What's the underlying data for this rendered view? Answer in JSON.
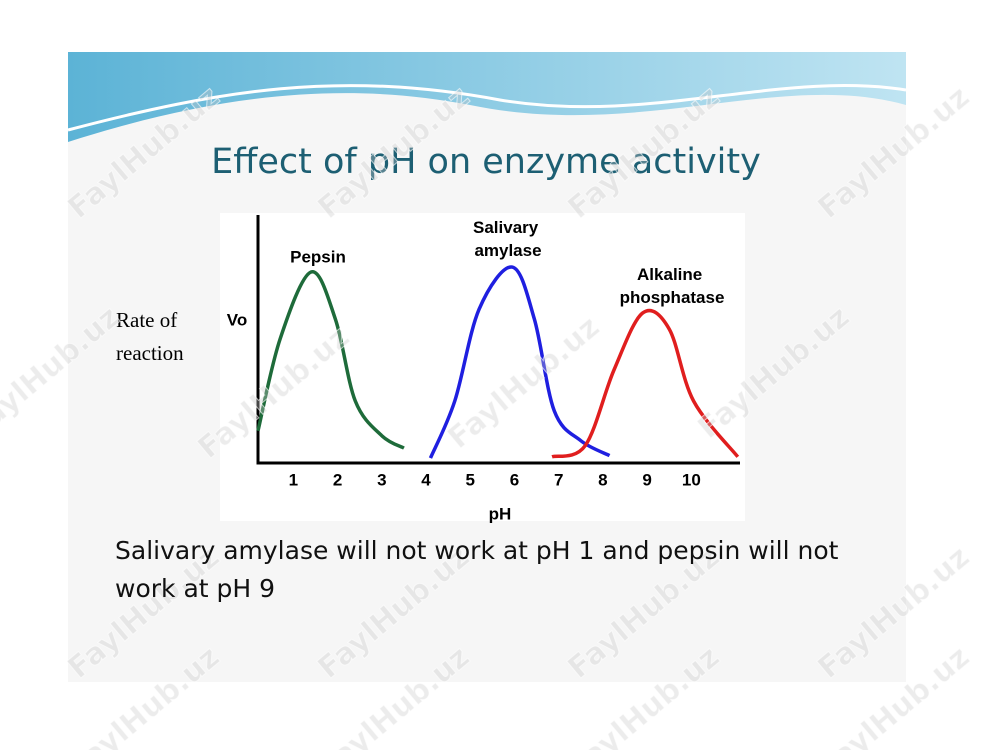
{
  "slide": {
    "title": "Effect of pH on enzyme activity",
    "side_label": [
      "Rate of",
      "reaction"
    ],
    "caption": "Salivary amylase will not work at pH 1 and pepsin will not work at pH 9",
    "watermark": "FaylHub.uz"
  },
  "chart_data": {
    "type": "line",
    "xlabel": "pH",
    "ylabel": "Vo",
    "xlim": [
      0.2,
      11.1
    ],
    "ylim": [
      0,
      10
    ],
    "xticks": [
      1,
      2,
      3,
      4,
      5,
      6,
      7,
      8,
      9,
      10
    ],
    "grid": false,
    "series": [
      {
        "name": "Pepsin",
        "color": "#1e6b3a",
        "x": [
          0.2,
          0.7,
          1.4,
          1.95,
          2.4,
          3.0,
          3.5
        ],
        "values": [
          1.3,
          5.0,
          7.7,
          5.8,
          2.5,
          1.1,
          0.6
        ]
      },
      {
        "name": "Salivary amylase",
        "color": "#1f1fe0",
        "x": [
          4.1,
          4.65,
          5.2,
          5.95,
          6.45,
          6.9,
          7.5,
          8.15
        ],
        "values": [
          0.2,
          2.5,
          6.2,
          7.9,
          5.8,
          2.1,
          0.9,
          0.3
        ]
      },
      {
        "name": "Alkaline phosphatase",
        "color": "#e01e1e",
        "x": [
          6.85,
          7.6,
          8.25,
          8.9,
          9.5,
          10.05,
          11.05
        ],
        "values": [
          0.25,
          0.7,
          3.75,
          6.05,
          5.4,
          2.5,
          0.25
        ]
      }
    ]
  }
}
